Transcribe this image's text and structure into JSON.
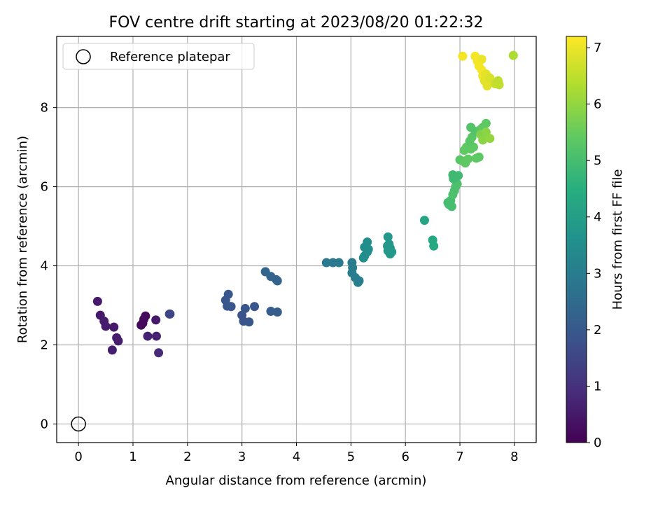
{
  "chart_data": {
    "type": "scatter",
    "title": "FOV centre drift starting at 2023/08/20 01:22:32",
    "xlabel": "Angular distance from reference (arcmin)",
    "ylabel": "Rotation from reference (arcmin)",
    "xlim": [
      -0.4,
      8.4
    ],
    "ylim": [
      -0.47,
      9.8
    ],
    "xticks": [
      0,
      1,
      2,
      3,
      4,
      5,
      6,
      7,
      8
    ],
    "yticks": [
      0,
      2,
      4,
      6,
      8
    ],
    "grid": true,
    "legend": {
      "position": "top-left",
      "entries": [
        "Reference platepar"
      ]
    },
    "reference_point": {
      "x": 0,
      "y": 0,
      "label": "Reference platepar"
    },
    "colorbar": {
      "label": "Hours from first FF file",
      "min": 0,
      "max": 7.2,
      "ticks": [
        0,
        1,
        2,
        3,
        4,
        5,
        6,
        7
      ],
      "colormap": "viridis"
    },
    "points": [
      [
        0.35,
        3.1,
        0.5
      ],
      [
        0.4,
        2.75,
        0.5
      ],
      [
        0.47,
        2.6,
        0.55
      ],
      [
        0.5,
        2.47,
        0.55
      ],
      [
        0.65,
        2.45,
        0.5
      ],
      [
        0.7,
        2.18,
        0.55
      ],
      [
        0.73,
        2.1,
        0.55
      ],
      [
        0.62,
        1.87,
        0.6
      ],
      [
        1.15,
        2.5,
        0.15
      ],
      [
        1.18,
        2.55,
        0.15
      ],
      [
        1.2,
        2.65,
        0.15
      ],
      [
        1.23,
        2.73,
        0.15
      ],
      [
        1.27,
        2.22,
        0.7
      ],
      [
        1.42,
        2.63,
        0.5
      ],
      [
        1.43,
        2.22,
        0.7
      ],
      [
        1.47,
        1.8,
        0.85
      ],
      [
        1.67,
        2.78,
        1.5
      ],
      [
        1.68,
        2.78,
        1.5
      ],
      [
        2.7,
        3.13,
        1.95
      ],
      [
        2.75,
        3.28,
        1.95
      ],
      [
        2.73,
        2.98,
        1.9
      ],
      [
        2.8,
        2.97,
        1.95
      ],
      [
        3.0,
        2.75,
        1.8
      ],
      [
        3.03,
        2.6,
        1.85
      ],
      [
        3.06,
        2.92,
        1.9
      ],
      [
        3.13,
        2.58,
        1.9
      ],
      [
        3.23,
        2.97,
        1.95
      ],
      [
        3.43,
        3.85,
        2.3
      ],
      [
        3.53,
        3.73,
        2.3
      ],
      [
        3.63,
        3.65,
        2.3
      ],
      [
        3.65,
        3.62,
        2.3
      ],
      [
        3.53,
        2.85,
        2.1
      ],
      [
        3.65,
        2.83,
        2.1
      ],
      [
        4.55,
        4.08,
        2.9
      ],
      [
        4.67,
        4.08,
        2.9
      ],
      [
        4.78,
        4.08,
        2.9
      ],
      [
        5.02,
        4.08,
        3.0
      ],
      [
        5.03,
        3.95,
        3.0
      ],
      [
        5.02,
        3.82,
        3.0
      ],
      [
        5.08,
        3.7,
        3.05
      ],
      [
        5.15,
        3.62,
        3.05
      ],
      [
        5.13,
        3.58,
        3.05
      ],
      [
        5.23,
        4.2,
        3.5
      ],
      [
        5.25,
        4.25,
        3.5
      ],
      [
        5.25,
        4.47,
        3.5
      ],
      [
        5.3,
        4.6,
        3.5
      ],
      [
        5.3,
        4.35,
        3.5
      ],
      [
        5.32,
        4.42,
        3.5
      ],
      [
        5.68,
        4.73,
        3.8
      ],
      [
        5.7,
        4.55,
        3.8
      ],
      [
        5.72,
        4.45,
        3.8
      ],
      [
        5.68,
        4.38,
        3.8
      ],
      [
        5.72,
        4.3,
        3.85
      ],
      [
        5.75,
        4.35,
        3.85
      ],
      [
        5.67,
        4.5,
        3.8
      ],
      [
        6.35,
        5.15,
        4.2
      ],
      [
        6.5,
        4.65,
        4.3
      ],
      [
        6.52,
        4.5,
        4.3
      ],
      [
        6.78,
        5.6,
        5.0
      ],
      [
        6.8,
        5.55,
        5.0
      ],
      [
        6.85,
        5.5,
        5.0
      ],
      [
        6.83,
        5.65,
        5.0
      ],
      [
        6.87,
        5.8,
        5.1
      ],
      [
        6.9,
        5.9,
        5.1
      ],
      [
        6.92,
        6.0,
        5.1
      ],
      [
        6.95,
        6.07,
        5.1
      ],
      [
        6.88,
        6.2,
        4.9
      ],
      [
        6.87,
        6.3,
        4.9
      ],
      [
        6.93,
        6.25,
        4.9
      ],
      [
        6.97,
        6.28,
        4.9
      ],
      [
        7.0,
        6.68,
        5.3
      ],
      [
        7.05,
        6.65,
        5.35
      ],
      [
        7.1,
        6.6,
        5.4
      ],
      [
        7.15,
        6.7,
        5.4
      ],
      [
        7.08,
        6.92,
        5.4
      ],
      [
        7.12,
        7.0,
        5.4
      ],
      [
        7.2,
        6.95,
        5.4
      ],
      [
        7.25,
        7.0,
        5.4
      ],
      [
        7.3,
        6.72,
        5.4
      ],
      [
        7.35,
        6.75,
        5.4
      ],
      [
        7.18,
        7.15,
        5.3
      ],
      [
        7.22,
        7.25,
        5.3
      ],
      [
        7.2,
        7.5,
        5.2
      ],
      [
        7.28,
        7.4,
        5.2
      ],
      [
        7.38,
        7.45,
        5.3
      ],
      [
        7.42,
        7.5,
        5.4
      ],
      [
        7.48,
        7.6,
        5.4
      ],
      [
        7.38,
        7.32,
        5.8
      ],
      [
        7.45,
        7.3,
        5.8
      ],
      [
        7.48,
        7.38,
        5.9
      ],
      [
        7.42,
        7.18,
        5.9
      ],
      [
        7.55,
        7.22,
        6.0
      ],
      [
        7.05,
        9.3,
        7.1
      ],
      [
        7.28,
        9.3,
        7.1
      ],
      [
        7.32,
        9.18,
        7.1
      ],
      [
        7.4,
        9.22,
        7.0
      ],
      [
        7.35,
        9.05,
        7.1
      ],
      [
        7.4,
        8.95,
        7.1
      ],
      [
        7.42,
        8.8,
        7.0
      ],
      [
        7.48,
        8.85,
        6.9
      ],
      [
        7.45,
        8.68,
        6.9
      ],
      [
        7.52,
        8.7,
        6.9
      ],
      [
        7.5,
        8.55,
        6.9
      ],
      [
        7.55,
        8.75,
        6.8
      ],
      [
        7.65,
        8.6,
        6.6
      ],
      [
        7.7,
        8.68,
        6.5
      ],
      [
        7.72,
        8.58,
        6.5
      ],
      [
        7.98,
        9.32,
        6.3
      ]
    ]
  }
}
